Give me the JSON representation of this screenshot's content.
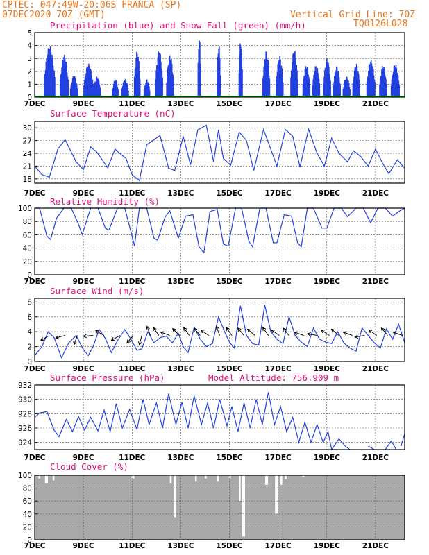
{
  "header": {
    "line1": "CPTEC:  047:49W-20:06S  FRANCA (SP)",
    "line2": "07DEC2020 70Z (GMT)",
    "vgrid": "Vertical Grid Line: 70Z",
    "code": "TQ0126L028"
  },
  "colors": {
    "series": "#2240e0",
    "snow": "#18a018",
    "cloud": "#a9a9a9",
    "title": "#e0107a",
    "header": "#e8751a"
  },
  "chart_data": [
    {
      "type": "bar",
      "title": "Precipitation (blue) and Snow Fall (green) (mm/h)",
      "ylim": [
        0,
        5
      ],
      "yticks": [
        0,
        1,
        2,
        3,
        4,
        5
      ],
      "xticks": [
        "7DEC",
        "9DEC",
        "11DEC",
        "13DEC",
        "15DEC",
        "17DEC",
        "19DEC",
        "21DEC"
      ],
      "snow": 0,
      "events": [
        {
          "day": 7.6,
          "peak": 4.0,
          "w": 0.45
        },
        {
          "day": 8.2,
          "peak": 3.3,
          "w": 0.35
        },
        {
          "day": 8.6,
          "peak": 1.7,
          "w": 0.3
        },
        {
          "day": 9.2,
          "peak": 2.6,
          "w": 0.4
        },
        {
          "day": 9.55,
          "peak": 1.6,
          "w": 0.3
        },
        {
          "day": 10.3,
          "peak": 1.4,
          "w": 0.25
        },
        {
          "day": 10.7,
          "peak": 1.4,
          "w": 0.3
        },
        {
          "day": 11.2,
          "peak": 3.6,
          "w": 0.25
        },
        {
          "day": 11.6,
          "peak": 1.4,
          "w": 0.25
        },
        {
          "day": 12.1,
          "peak": 3.7,
          "w": 0.3
        },
        {
          "day": 12.55,
          "peak": 3.3,
          "w": 0.3
        },
        {
          "day": 13.75,
          "peak": 4.9,
          "w": 0.12
        },
        {
          "day": 14.55,
          "peak": 4.2,
          "w": 0.15
        },
        {
          "day": 15.45,
          "peak": 4.5,
          "w": 0.15
        },
        {
          "day": 16.5,
          "peak": 3.6,
          "w": 0.3
        },
        {
          "day": 17.05,
          "peak": 3.2,
          "w": 0.3
        },
        {
          "day": 17.65,
          "peak": 3.7,
          "w": 0.3
        },
        {
          "day": 18.15,
          "peak": 2.5,
          "w": 0.3
        },
        {
          "day": 18.55,
          "peak": 2.5,
          "w": 0.3
        },
        {
          "day": 19.0,
          "peak": 3.0,
          "w": 0.3
        },
        {
          "day": 19.4,
          "peak": 2.4,
          "w": 0.3
        },
        {
          "day": 19.8,
          "peak": 1.6,
          "w": 0.3
        },
        {
          "day": 20.2,
          "peak": 2.6,
          "w": 0.3
        },
        {
          "day": 20.8,
          "peak": 2.9,
          "w": 0.35
        },
        {
          "day": 21.3,
          "peak": 2.5,
          "w": 0.3
        },
        {
          "day": 21.8,
          "peak": 2.6,
          "w": 0.35
        }
      ]
    },
    {
      "type": "line",
      "title": "Surface Temperature (nC)",
      "ylim": [
        17,
        31.5
      ],
      "yticks": [
        18,
        21,
        24,
        27,
        30
      ],
      "xticks": [
        "7DEC",
        "9DEC",
        "11DEC",
        "13DEC",
        "15DEC",
        "17DEC",
        "19DEC",
        "21DEC"
      ],
      "points": [
        [
          7.0,
          21
        ],
        [
          7.3,
          19
        ],
        [
          7.6,
          18.4
        ],
        [
          7.95,
          25
        ],
        [
          8.25,
          27.2
        ],
        [
          8.7,
          22
        ],
        [
          9.0,
          20.2
        ],
        [
          9.3,
          25.5
        ],
        [
          9.55,
          24.3
        ],
        [
          10.0,
          20.6
        ],
        [
          10.3,
          25
        ],
        [
          10.45,
          24.2
        ],
        [
          10.75,
          22.8
        ],
        [
          11.0,
          19
        ],
        [
          11.3,
          17.6
        ],
        [
          11.6,
          26
        ],
        [
          11.85,
          27
        ],
        [
          12.15,
          28.2
        ],
        [
          12.5,
          20.5
        ],
        [
          12.75,
          20
        ],
        [
          13.1,
          28
        ],
        [
          13.4,
          21.3
        ],
        [
          13.7,
          29.5
        ],
        [
          14.05,
          30.6
        ],
        [
          14.35,
          22
        ],
        [
          14.55,
          29.5
        ],
        [
          14.75,
          22.8
        ],
        [
          15.05,
          21.2
        ],
        [
          15.4,
          29
        ],
        [
          15.7,
          27
        ],
        [
          16.0,
          20
        ],
        [
          16.4,
          29.6
        ],
        [
          16.6,
          26.5
        ],
        [
          16.95,
          21
        ],
        [
          17.3,
          29.6
        ],
        [
          17.6,
          28
        ],
        [
          17.9,
          20.8
        ],
        [
          18.25,
          29.7
        ],
        [
          18.6,
          24
        ],
        [
          18.9,
          21
        ],
        [
          19.2,
          27.6
        ],
        [
          19.5,
          24
        ],
        [
          19.85,
          22
        ],
        [
          20.1,
          24.6
        ],
        [
          20.4,
          23.2
        ],
        [
          20.7,
          21
        ],
        [
          21.0,
          25
        ],
        [
          21.3,
          21.6
        ],
        [
          21.55,
          19.2
        ],
        [
          21.9,
          22.5
        ],
        [
          22.2,
          20.5
        ]
      ]
    },
    {
      "type": "line",
      "title": "Relative Humidity (%)",
      "ylim": [
        0,
        100
      ],
      "yticks": [
        0,
        20,
        40,
        60,
        80,
        100
      ],
      "xticks": [
        "7DEC",
        "9DEC",
        "11DEC",
        "13DEC",
        "15DEC",
        "17DEC",
        "19DEC",
        "21DEC"
      ],
      "points": [
        [
          7.0,
          100
        ],
        [
          7.2,
          100
        ],
        [
          7.5,
          58
        ],
        [
          7.65,
          53
        ],
        [
          7.9,
          85
        ],
        [
          8.2,
          100
        ],
        [
          8.5,
          100
        ],
        [
          8.8,
          76
        ],
        [
          8.95,
          60
        ],
        [
          9.3,
          100
        ],
        [
          9.6,
          100
        ],
        [
          9.9,
          70
        ],
        [
          10.05,
          67
        ],
        [
          10.4,
          100
        ],
        [
          10.7,
          100
        ],
        [
          10.95,
          65
        ],
        [
          11.1,
          43
        ],
        [
          11.3,
          100
        ],
        [
          11.6,
          100
        ],
        [
          11.9,
          55
        ],
        [
          12.05,
          52
        ],
        [
          12.35,
          86
        ],
        [
          12.55,
          96
        ],
        [
          12.9,
          55
        ],
        [
          13.2,
          88
        ],
        [
          13.5,
          90
        ],
        [
          13.75,
          42
        ],
        [
          13.95,
          33
        ],
        [
          14.2,
          95
        ],
        [
          14.5,
          98
        ],
        [
          14.75,
          46
        ],
        [
          14.95,
          43
        ],
        [
          15.25,
          100
        ],
        [
          15.5,
          100
        ],
        [
          15.8,
          50
        ],
        [
          15.95,
          42
        ],
        [
          16.25,
          100
        ],
        [
          16.5,
          100
        ],
        [
          16.8,
          48
        ],
        [
          16.95,
          48
        ],
        [
          17.25,
          90
        ],
        [
          17.55,
          88
        ],
        [
          17.8,
          48
        ],
        [
          17.95,
          42
        ],
        [
          18.2,
          100
        ],
        [
          18.45,
          100
        ],
        [
          18.8,
          70
        ],
        [
          19.0,
          70
        ],
        [
          19.3,
          100
        ],
        [
          19.6,
          100
        ],
        [
          19.85,
          87
        ],
        [
          20.2,
          100
        ],
        [
          20.5,
          100
        ],
        [
          20.8,
          78
        ],
        [
          21.1,
          100
        ],
        [
          21.4,
          100
        ],
        [
          21.7,
          88
        ],
        [
          22.0,
          96
        ],
        [
          22.2,
          100
        ]
      ]
    },
    {
      "type": "line",
      "title": "Surface Wind (m/s)",
      "ylim": [
        0,
        8.5
      ],
      "yticks": [
        0,
        2,
        4,
        6,
        8
      ],
      "xticks": [
        "7DEC",
        "9DEC",
        "11DEC",
        "13DEC",
        "15DEC",
        "17DEC",
        "19DEC",
        "21DEC"
      ],
      "points": [
        [
          7.0,
          0.8
        ],
        [
          7.3,
          2.0
        ],
        [
          7.55,
          4.0
        ],
        [
          7.8,
          3.2
        ],
        [
          8.1,
          0.5
        ],
        [
          8.4,
          2.5
        ],
        [
          8.7,
          3.5
        ],
        [
          9.0,
          1.6
        ],
        [
          9.2,
          0.8
        ],
        [
          9.4,
          2.0
        ],
        [
          9.65,
          4.3
        ],
        [
          9.9,
          3.1
        ],
        [
          10.15,
          1.2
        ],
        [
          10.4,
          2.8
        ],
        [
          10.7,
          4.3
        ],
        [
          10.95,
          3.0
        ],
        [
          11.2,
          1.5
        ],
        [
          11.4,
          1.7
        ],
        [
          11.65,
          4.0
        ],
        [
          11.9,
          2.5
        ],
        [
          12.15,
          3.2
        ],
        [
          12.4,
          3.4
        ],
        [
          12.65,
          2.5
        ],
        [
          12.9,
          3.8
        ],
        [
          13.1,
          2.0
        ],
        [
          13.3,
          1.2
        ],
        [
          13.55,
          4.6
        ],
        [
          13.8,
          3.0
        ],
        [
          14.05,
          2.0
        ],
        [
          14.3,
          2.4
        ],
        [
          14.55,
          6.0
        ],
        [
          14.8,
          4.0
        ],
        [
          15.0,
          2.6
        ],
        [
          15.2,
          1.8
        ],
        [
          15.45,
          7.5
        ],
        [
          15.7,
          3.5
        ],
        [
          15.95,
          2.4
        ],
        [
          16.2,
          2.2
        ],
        [
          16.45,
          7.6
        ],
        [
          16.7,
          4.0
        ],
        [
          16.95,
          3.0
        ],
        [
          17.2,
          2.4
        ],
        [
          17.45,
          6.0
        ],
        [
          17.7,
          3.5
        ],
        [
          17.95,
          2.6
        ],
        [
          18.2,
          2.0
        ],
        [
          18.45,
          4.5
        ],
        [
          18.7,
          3.0
        ],
        [
          18.95,
          2.6
        ],
        [
          19.2,
          2.4
        ],
        [
          19.45,
          4.0
        ],
        [
          19.7,
          2.5
        ],
        [
          19.95,
          1.8
        ],
        [
          20.2,
          1.4
        ],
        [
          20.45,
          4.5
        ],
        [
          20.7,
          3.5
        ],
        [
          20.95,
          2.5
        ],
        [
          21.2,
          1.8
        ],
        [
          21.45,
          4.4
        ],
        [
          21.7,
          3.0
        ],
        [
          21.95,
          5.0
        ],
        [
          22.2,
          2.5
        ]
      ],
      "arrows": [
        [
          7.6,
          150
        ],
        [
          8.25,
          165
        ],
        [
          8.75,
          110
        ],
        [
          9.4,
          175
        ],
        [
          9.85,
          210
        ],
        [
          10.5,
          150
        ],
        [
          11.05,
          130
        ],
        [
          11.4,
          105
        ],
        [
          11.75,
          250
        ],
        [
          12.1,
          235
        ],
        [
          12.55,
          200
        ],
        [
          12.95,
          225
        ],
        [
          13.35,
          235
        ],
        [
          13.8,
          230
        ],
        [
          14.15,
          215
        ],
        [
          14.6,
          250
        ],
        [
          15.1,
          235
        ],
        [
          15.6,
          230
        ],
        [
          16.05,
          220
        ],
        [
          16.6,
          235
        ],
        [
          17.05,
          215
        ],
        [
          17.45,
          230
        ],
        [
          18.05,
          200
        ],
        [
          18.6,
          190
        ],
        [
          19.1,
          215
        ],
        [
          19.5,
          220
        ],
        [
          20.05,
          200
        ],
        [
          20.55,
          170
        ],
        [
          21.05,
          215
        ],
        [
          21.5,
          230
        ],
        [
          22.1,
          200
        ]
      ]
    },
    {
      "type": "line",
      "title": "Surface Pressure (hPa)",
      "subtitle": "Model Altitude: 756.909 m",
      "ylim": [
        923,
        932
      ],
      "yticks": [
        924,
        926,
        928,
        930,
        932
      ],
      "xticks": [
        "7DEC",
        "9DEC",
        "11DEC",
        "13DEC",
        "15DEC",
        "17DEC",
        "19DEC",
        "21DEC"
      ],
      "points": [
        [
          7.0,
          927.5
        ],
        [
          7.2,
          928.1
        ],
        [
          7.5,
          928.3
        ],
        [
          7.8,
          925.7
        ],
        [
          8.0,
          924.8
        ],
        [
          8.3,
          927.2
        ],
        [
          8.55,
          925.5
        ],
        [
          8.8,
          927.6
        ],
        [
          9.05,
          925.7
        ],
        [
          9.3,
          927.5
        ],
        [
          9.6,
          925.6
        ],
        [
          9.85,
          928.5
        ],
        [
          10.1,
          925.5
        ],
        [
          10.35,
          929.4
        ],
        [
          10.6,
          926.0
        ],
        [
          10.9,
          928.6
        ],
        [
          11.2,
          925.8
        ],
        [
          11.45,
          930.0
        ],
        [
          11.7,
          926.5
        ],
        [
          12.0,
          929.5
        ],
        [
          12.25,
          926.0
        ],
        [
          12.5,
          930.8
        ],
        [
          12.8,
          926.5
        ],
        [
          13.05,
          929.6
        ],
        [
          13.3,
          926.0
        ],
        [
          13.55,
          930.5
        ],
        [
          13.85,
          926.5
        ],
        [
          14.1,
          929.5
        ],
        [
          14.35,
          926.0
        ],
        [
          14.6,
          930.0
        ],
        [
          14.9,
          926.3
        ],
        [
          15.1,
          929.0
        ],
        [
          15.35,
          925.5
        ],
        [
          15.6,
          929.5
        ],
        [
          15.85,
          926.0
        ],
        [
          16.1,
          930.0
        ],
        [
          16.35,
          926.5
        ],
        [
          16.6,
          931.0
        ],
        [
          16.85,
          926.5
        ],
        [
          17.1,
          929.0
        ],
        [
          17.35,
          925.5
        ],
        [
          17.6,
          927.5
        ],
        [
          17.85,
          924.0
        ],
        [
          18.1,
          926.8
        ],
        [
          18.35,
          924.0
        ],
        [
          18.6,
          926.5
        ],
        [
          18.85,
          924.0
        ],
        [
          19.05,
          925.5
        ],
        [
          19.2,
          923.0
        ],
        [
          19.5,
          924.5
        ],
        [
          19.75,
          923.5
        ],
        [
          19.95,
          923.0
        ]
      ],
      "points2": [
        [
          20.7,
          923.5
        ],
        [
          20.95,
          923.0
        ]
      ],
      "points3": [
        [
          21.4,
          923.0
        ],
        [
          21.65,
          924.2
        ],
        [
          21.85,
          923.0
        ]
      ],
      "points4": [
        [
          22.05,
          923.5
        ],
        [
          22.2,
          925.2
        ]
      ]
    },
    {
      "type": "area",
      "title": "Cloud Cover (%)",
      "ylim": [
        0,
        100
      ],
      "yticks": [
        0,
        20,
        40,
        60,
        80,
        100
      ],
      "xticks": [
        "7DEC",
        "9DEC",
        "11DEC",
        "13DEC",
        "15DEC",
        "17DEC",
        "19DEC",
        "21DEC"
      ],
      "dips": [
        [
          7.15,
          95
        ],
        [
          7.45,
          88
        ],
        [
          7.75,
          92
        ],
        [
          11.0,
          95
        ],
        [
          12.55,
          88
        ],
        [
          12.75,
          35
        ],
        [
          13.6,
          90
        ],
        [
          14.0,
          95
        ],
        [
          14.5,
          90
        ],
        [
          15.0,
          95
        ],
        [
          15.4,
          60
        ],
        [
          15.55,
          5
        ],
        [
          16.5,
          85
        ],
        [
          16.9,
          40
        ],
        [
          17.1,
          85
        ],
        [
          17.3,
          94
        ],
        [
          18.0,
          97
        ]
      ]
    }
  ]
}
